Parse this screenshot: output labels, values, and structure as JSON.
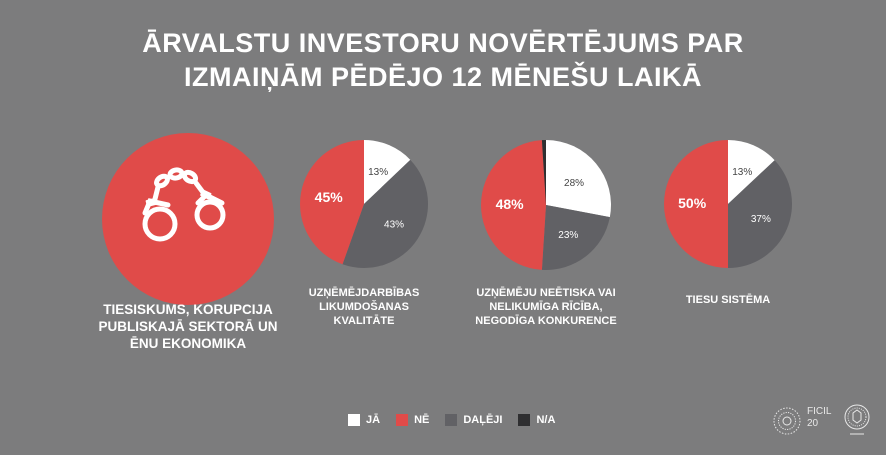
{
  "title": {
    "line1": "ĀRVALSTU INVESTORU NOVĒRTĒJUMS PAR",
    "line2": "IZMAIŅĀM PĒDĒJO 12 MĒNEŠU LAIKĀ"
  },
  "theme": {
    "icon": "handcuffs-icon",
    "color": "#e04b49",
    "label_lines": [
      "TIESISKUMS, KORUPCIJA",
      "PUBLISKAJĀ SEKTORĀ UN",
      "ĒNU EKONOMIKA"
    ]
  },
  "colors": {
    "ja": "#ffffff",
    "ne": "#e04b49",
    "daleji": "#616165",
    "na": "#2f2f31",
    "background": "#7c7c7d"
  },
  "legend": [
    {
      "key": "ja",
      "label": "JĀ"
    },
    {
      "key": "ne",
      "label": "NĒ"
    },
    {
      "key": "daleji",
      "label": "DAĻĒJI"
    },
    {
      "key": "na",
      "label": "N/A"
    }
  ],
  "chart_data": [
    {
      "type": "pie",
      "label_lines": [
        "UZŅĒMĒJDARBĪBAS",
        "LIKUMDOŠANAS",
        "KVALITĀTE"
      ],
      "slices": [
        {
          "category": "JĀ",
          "value": 13,
          "label": "13%"
        },
        {
          "category": "DAĻĒJI",
          "value": 43,
          "label": "43%"
        },
        {
          "category": "NĒ",
          "value": 45,
          "label": "45%"
        }
      ]
    },
    {
      "type": "pie",
      "label_lines": [
        "UZŅĒMĒJU NEĒTISKA VAI",
        "NELIKUMĪGA RĪCĪBA,",
        "NEGODĪGA KONKURENCE"
      ],
      "slices": [
        {
          "category": "JĀ",
          "value": 28,
          "label": "28%"
        },
        {
          "category": "DAĻĒJI",
          "value": 23,
          "label": "23%"
        },
        {
          "category": "NĒ",
          "value": 48,
          "label": "48%"
        },
        {
          "category": "N/A",
          "value": 1,
          "label": ""
        }
      ]
    },
    {
      "type": "pie",
      "label_lines": [
        "TIESU SISTĒMA"
      ],
      "slices": [
        {
          "category": "JĀ",
          "value": 13,
          "label": "13%"
        },
        {
          "category": "DAĻĒJI",
          "value": 37,
          "label": "37%"
        },
        {
          "category": "NĒ",
          "value": 50,
          "label": "50%"
        }
      ]
    }
  ],
  "footer": {
    "logo_text_line1": "FICIL",
    "logo_text_line2": "20"
  }
}
